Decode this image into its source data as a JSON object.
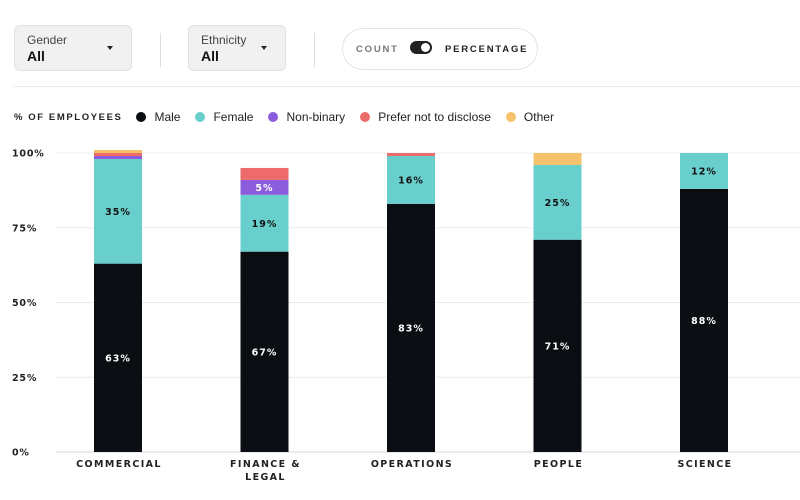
{
  "filters": {
    "gender": {
      "label": "Gender",
      "value": "All"
    },
    "ethnicity": {
      "label": "Ethnicity",
      "value": "All"
    }
  },
  "toggle": {
    "count_label": "COUNT",
    "percentage_label": "PERCENTAGE",
    "selected": "percentage"
  },
  "chart_data": {
    "type": "bar",
    "stacked": true,
    "ylabel": "% OF EMPLOYEES",
    "ylim": [
      0,
      100
    ],
    "yticks": [
      "0%",
      "25%",
      "50%",
      "75%",
      "100%"
    ],
    "categories": [
      "COMMERCIAL",
      "FINANCE & LEGAL",
      "OPERATIONS",
      "PEOPLE",
      "SCIENCE"
    ],
    "category_lines": [
      [
        "COMMERCIAL"
      ],
      [
        "FINANCE &",
        "LEGAL"
      ],
      [
        "OPERATIONS"
      ],
      [
        "PEOPLE"
      ],
      [
        "SCIENCE"
      ]
    ],
    "legend_position": "top-left",
    "grid": true,
    "series": [
      {
        "name": "Male",
        "color": "#0a0d12",
        "values": [
          63,
          67,
          83,
          71,
          88
        ],
        "value_labels": [
          "63%",
          "67%",
          "83%",
          "71%",
          "88%"
        ]
      },
      {
        "name": "Female",
        "color": "#69cfcc",
        "values": [
          35,
          19,
          16,
          25,
          12
        ],
        "value_labels": [
          "35%",
          "19%",
          "16%",
          "25%",
          "12%"
        ]
      },
      {
        "name": "Non-binary",
        "color": "#8b5cdc",
        "values": [
          1,
          5,
          0,
          0,
          0
        ],
        "value_labels": [
          "",
          "5%",
          "",
          "",
          ""
        ]
      },
      {
        "name": "Prefer not to disclose",
        "color": "#ee6b6b",
        "values": [
          1,
          4,
          1,
          0,
          0
        ],
        "value_labels": [
          "",
          "",
          "",
          "",
          ""
        ]
      },
      {
        "name": "Other",
        "color": "#f6c26b",
        "values": [
          1,
          0,
          0,
          4,
          0
        ],
        "value_labels": [
          "",
          "",
          "",
          "",
          ""
        ]
      }
    ]
  }
}
